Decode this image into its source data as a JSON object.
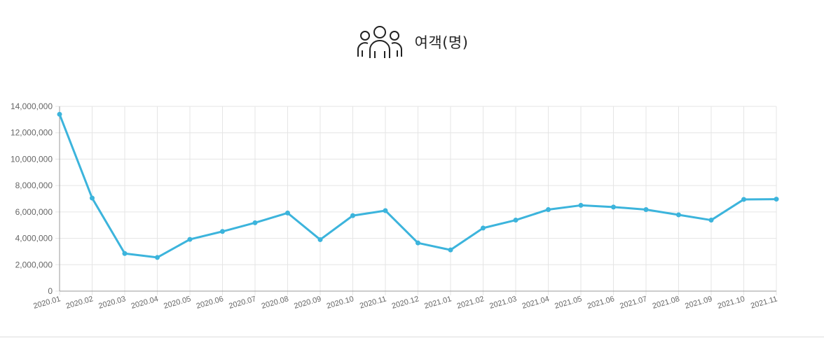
{
  "header": {
    "title": "여객(명)",
    "icon": "people-group-icon"
  },
  "colors": {
    "line": "#3cb4dc",
    "grid": "#e5e5e5",
    "axis": "#9a9a9a",
    "text": "#666666"
  },
  "chart_data": {
    "type": "line",
    "title": "여객(명)",
    "categories": [
      "2020.01",
      "2020.02",
      "2020.03",
      "2020.04",
      "2020.05",
      "2020.06",
      "2020.07",
      "2020.08",
      "2020.09",
      "2020.10",
      "2020.11",
      "2020.12",
      "2021.01",
      "2021.02",
      "2021.03",
      "2021.04",
      "2021.05",
      "2021.06",
      "2021.07",
      "2021.08",
      "2021.09",
      "2021.10",
      "2021.11"
    ],
    "values": [
      13400000,
      7050000,
      2850000,
      2550000,
      3920000,
      4520000,
      5180000,
      5920000,
      3900000,
      5720000,
      6100000,
      3650000,
      3120000,
      4780000,
      5380000,
      6180000,
      6500000,
      6370000,
      6180000,
      5780000,
      5380000,
      6950000,
      6970000
    ],
    "y_ticks": [
      "0",
      "2,000,000",
      "4,000,000",
      "6,000,000",
      "8,000,000",
      "10,000,000",
      "12,000,000",
      "14,000,000"
    ],
    "ylim": [
      0,
      14000000
    ],
    "xlabel": "",
    "ylabel": "",
    "grid": true,
    "legend": "none"
  }
}
